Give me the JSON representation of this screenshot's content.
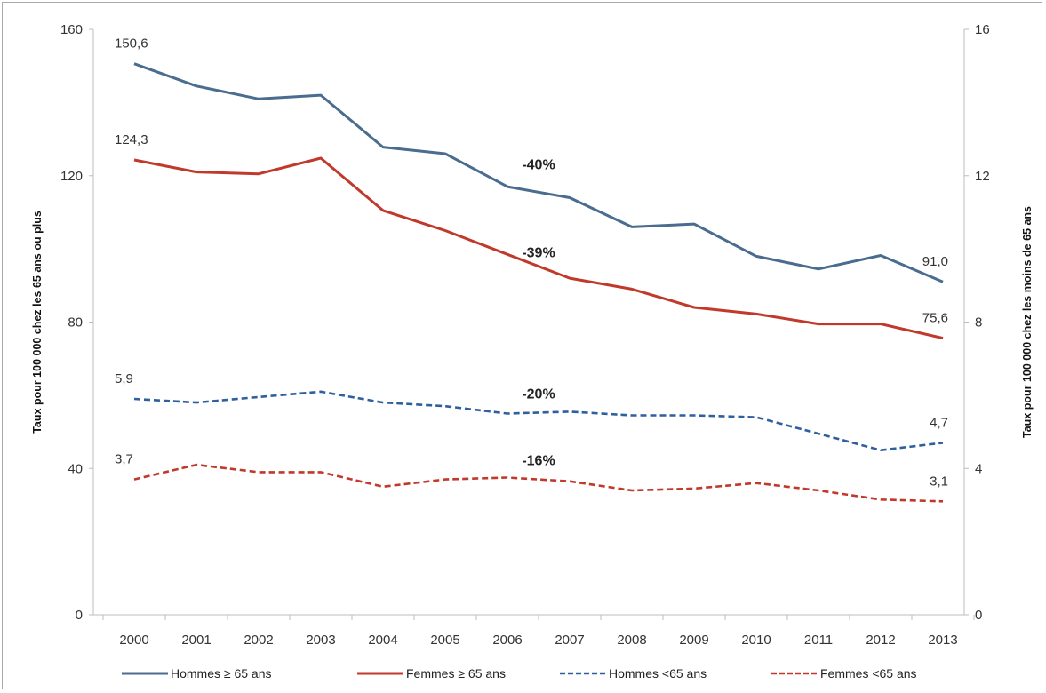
{
  "chart_data": {
    "type": "line",
    "categories": [
      "2000",
      "2001",
      "2002",
      "2003",
      "2004",
      "2005",
      "2006",
      "2007",
      "2008",
      "2009",
      "2010",
      "2011",
      "2012",
      "2013"
    ],
    "ylabel_left": "Taux pour 100 000 chez les 65 ans ou plus",
    "ylabel_right": "Taux pour 100 000 chez les moins de 65 ans",
    "ylim_left": [
      0,
      160
    ],
    "ylim_right": [
      0,
      16
    ],
    "yticks_left": [
      "0",
      "40",
      "80",
      "120",
      "160"
    ],
    "yticks_right": [
      "0",
      "4",
      "8",
      "12",
      "16"
    ],
    "grid": false,
    "legend_position": "bottom",
    "series": [
      {
        "name": "Hommes ≥ 65 ans",
        "axis": "left",
        "color": "#4a6c8f",
        "style": "solid",
        "values": [
          150.6,
          144.5,
          141.0,
          142.0,
          127.8,
          126.0,
          117.0,
          114.0,
          106.0,
          106.8,
          98.0,
          94.5,
          98.2,
          91.0
        ]
      },
      {
        "name": "Femmes ≥ 65 ans",
        "axis": "left",
        "color": "#c0392b",
        "style": "solid",
        "values": [
          124.3,
          121.0,
          120.5,
          124.8,
          110.5,
          105.0,
          98.5,
          92.0,
          89.0,
          84.0,
          82.2,
          79.5,
          79.5,
          75.6
        ]
      },
      {
        "name": "Hommes <65 ans",
        "axis": "right",
        "color": "#2f5f9e",
        "style": "dashed",
        "values": [
          5.9,
          5.8,
          5.95,
          6.1,
          5.8,
          5.7,
          5.5,
          5.55,
          5.45,
          5.45,
          5.4,
          4.95,
          4.5,
          4.7
        ]
      },
      {
        "name": "Femmes <65 ans",
        "axis": "right",
        "color": "#c0392b",
        "style": "dashed",
        "values": [
          3.7,
          4.1,
          3.9,
          3.9,
          3.5,
          3.7,
          3.75,
          3.65,
          3.4,
          3.45,
          3.6,
          3.4,
          3.15,
          3.1
        ]
      }
    ],
    "data_labels": [
      {
        "series": 0,
        "index": 0,
        "text": "150,6"
      },
      {
        "series": 0,
        "index": 13,
        "text": "91,0"
      },
      {
        "series": 1,
        "index": 0,
        "text": "124,3"
      },
      {
        "series": 1,
        "index": 13,
        "text": "75,6"
      },
      {
        "series": 2,
        "index": 0,
        "text": "5,9"
      },
      {
        "series": 2,
        "index": 13,
        "text": "4,7"
      },
      {
        "series": 3,
        "index": 0,
        "text": "3,7"
      },
      {
        "series": 3,
        "index": 13,
        "text": "3,1"
      }
    ],
    "annotations": [
      {
        "text": "-40%",
        "series": 0
      },
      {
        "text": "-39%",
        "series": 1
      },
      {
        "text": "-20%",
        "series": 2
      },
      {
        "text": "-16%",
        "series": 3
      }
    ]
  }
}
